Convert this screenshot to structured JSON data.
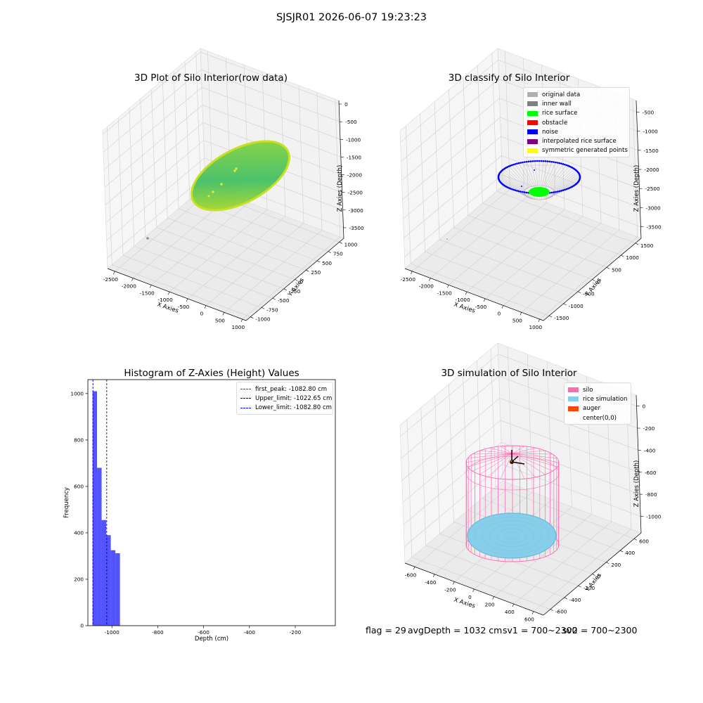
{
  "suptitle": "SJSJR01 2026-06-07 19:23:23",
  "status": {
    "flag": "flag = 29",
    "avg": "avgDepth = 1032 cm",
    "sv1": "sv1 = 700~2300",
    "sv2": "sv2 = 700~2300"
  },
  "colors": {
    "original_data": "#b0b0b0",
    "inner_wall": "#808080",
    "rice_surface": "#00ff00",
    "obstacle": "#ff0000",
    "noise": "#0000ff",
    "interpolated_rice_surface": "#800080",
    "symmetric_generated_points": "#ffff00",
    "silo": "#ff69b4",
    "rice_simulation": "#87ceeb",
    "auger": "#ff4500",
    "histogram_bar": "#4a4aff"
  },
  "chart_data": [
    {
      "type": "scatter",
      "projection": "3d",
      "title": "3D Plot of Silo Interior(row data)",
      "xlabel": "X Axies",
      "ylabel": "Y Axies",
      "zlabel": "Z Axies (Depth)",
      "x_ticks": [
        -2500,
        -2000,
        -1500,
        -1000,
        -500,
        0,
        500,
        1000
      ],
      "y_ticks": [
        -1000,
        -750,
        -500,
        -250,
        0,
        250,
        500,
        750,
        1000
      ],
      "z_ticks": [
        0,
        -500,
        -1000,
        -1500,
        -2000,
        -2500,
        -3000,
        -3500
      ],
      "xlim": [
        -2700,
        1100
      ],
      "ylim": [
        -1100,
        1100
      ],
      "zlim": [
        -3800,
        100
      ],
      "colormap": "viridis-like (green to yellow)",
      "points_summary": "dense disk of points centered near x=0, y=0, depth about -1050",
      "outliers": [
        {
          "x": -2400,
          "y": -1000,
          "z": -3600
        },
        {
          "x": -150,
          "y": -300,
          "z": -1200
        },
        {
          "x": -250,
          "y": -350,
          "z": -1350
        },
        {
          "x": -500,
          "y": -450,
          "z": -1600
        }
      ]
    },
    {
      "type": "scatter",
      "projection": "3d",
      "title": "3D classify of Silo Interior",
      "xlabel": "X Axies",
      "ylabel": "Y Axies",
      "zlabel": "Z Axies (Depth)",
      "x_ticks": [
        -2500,
        -2000,
        -1500,
        -1000,
        -500,
        0,
        500,
        1000
      ],
      "y_ticks": [
        -1500,
        -1000,
        -500,
        0,
        500,
        1000,
        1500
      ],
      "z_ticks": [
        -500,
        -1000,
        -1500,
        -2000,
        -2500,
        -3000,
        -3500
      ],
      "xlim": [
        -2700,
        1100
      ],
      "ylim": [
        -1700,
        1700
      ],
      "zlim": [
        -3800,
        -200
      ],
      "legend_position": "upper right",
      "legend": [
        {
          "label": "original data",
          "color_key": "original_data"
        },
        {
          "label": "inner wall",
          "color_key": "inner_wall"
        },
        {
          "label": "rice surface",
          "color_key": "rice_surface"
        },
        {
          "label": "obstacle",
          "color_key": "obstacle"
        },
        {
          "label": "noise",
          "color_key": "noise"
        },
        {
          "label": "interpolated rice surface",
          "color_key": "interpolated_rice_surface"
        },
        {
          "label": "symmetric generated points",
          "color_key": "symmetric_generated_points"
        }
      ]
    },
    {
      "type": "bar",
      "title": "Histogram of Z-Axies (Height) Values",
      "xlabel": "Depth (cm)",
      "ylabel": "Frequency",
      "xlim": [
        -1105,
        -25
      ],
      "ylim": [
        0,
        1060
      ],
      "x_ticks": [
        -1000,
        -800,
        -600,
        -400,
        -200
      ],
      "y_ticks": [
        0,
        200,
        400,
        600,
        800,
        1000
      ],
      "bin_width": 20,
      "bins": [
        {
          "start": -1085,
          "count": 1010
        },
        {
          "start": -1065,
          "count": 680
        },
        {
          "start": -1045,
          "count": 455
        },
        {
          "start": -1025,
          "count": 390
        },
        {
          "start": -1005,
          "count": 325
        },
        {
          "start": -985,
          "count": 312
        }
      ],
      "vlines": [
        {
          "label": "first_peak: -1082.80 cm",
          "x": -1082.8,
          "color": "#ff0000"
        },
        {
          "label": "Upper_limit: -1022.65 cm",
          "x": -1022.65,
          "color": "#000000"
        },
        {
          "label": "Lower_limit: -1082.80 cm",
          "x": -1082.8,
          "color": "#0000ff"
        }
      ],
      "legend_position": "upper right"
    },
    {
      "type": "scatter",
      "projection": "3d",
      "title": "3D simulation of Silo Interior",
      "xlabel": "X Axies",
      "ylabel": "Y Axies",
      "zlabel": "Z Axies (Depth)",
      "x_ticks": [
        -600,
        -400,
        -200,
        0,
        200,
        400,
        600
      ],
      "y_ticks": [
        -600,
        -400,
        -200,
        0,
        200,
        400,
        600
      ],
      "z_ticks": [
        0,
        -200,
        -400,
        -600,
        -800,
        -1000
      ],
      "xlim": [
        -700,
        700
      ],
      "ylim": [
        -700,
        700
      ],
      "zlim": [
        -1150,
        100
      ],
      "silo_radius": 600,
      "silo_depth": -1150,
      "rice_depth": -1032,
      "legend_position": "upper right",
      "legend": [
        {
          "label": "silo",
          "color_key": "silo"
        },
        {
          "label": "rice simulation",
          "color_key": "rice_simulation"
        },
        {
          "label": "auger",
          "color_key": "auger"
        },
        {
          "label": "center(0,0)",
          "color_key": ""
        }
      ]
    }
  ]
}
